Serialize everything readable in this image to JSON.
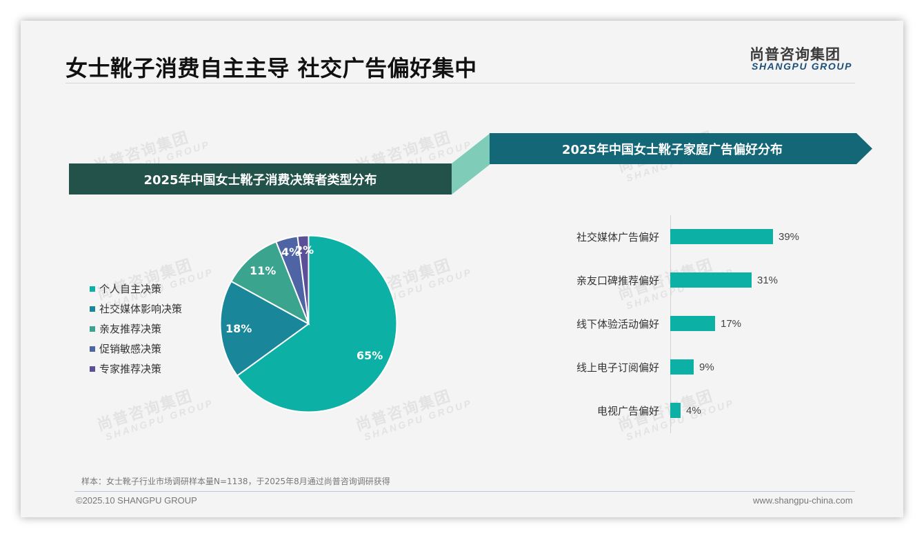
{
  "header": {
    "title": "女士靴子消费自主主导 社交广告偏好集中",
    "logo_cn": "尚普咨询集团",
    "logo_en": "SHANGPU GROUP"
  },
  "watermark": {
    "cn": "尚普咨询集团",
    "en": "SHANGPU GROUP"
  },
  "left_panel": {
    "banner_title": "2025年中国女士靴子消费决策者类型分布"
  },
  "right_panel": {
    "banner_title": "2025年中国女士靴子家庭广告偏好分布"
  },
  "colors": {
    "left_banner": "#22524a",
    "right_banner": "#146776",
    "connector": "#7fcdb9",
    "bar": "#0db0a4"
  },
  "chart_data": [
    {
      "type": "pie",
      "title": "2025年中国女士靴子消费决策者类型分布",
      "categories": [
        "个人自主决策",
        "社交媒体影响决策",
        "亲友推荐决策",
        "促销敏感决策",
        "专家推荐决策"
      ],
      "values": [
        65,
        18,
        11,
        4,
        2
      ],
      "labels": [
        "65%",
        "18%",
        "11%",
        "4%",
        "2%"
      ],
      "colors": [
        "#0db0a4",
        "#1a8699",
        "#3aa48f",
        "#4f64a4",
        "#5b4f98"
      ],
      "legend_position": "left",
      "start_angle": "12 o'clock, clockwise"
    },
    {
      "type": "bar",
      "orientation": "horizontal",
      "title": "2025年中国女士靴子家庭广告偏好分布",
      "categories": [
        "社交媒体广告偏好",
        "亲友口碑推荐偏好",
        "线下体验活动偏好",
        "线上电子订阅偏好",
        "电视广告偏好"
      ],
      "values": [
        39,
        31,
        17,
        9,
        4
      ],
      "labels": [
        "39%",
        "31%",
        "17%",
        "9%",
        "4%"
      ],
      "xlabel": "",
      "ylabel": "",
      "grid": false
    }
  ],
  "footer": {
    "note": "样本：女士靴子行业市场调研样本量N=1138，于2025年8月通过尚普咨询调研获得",
    "copyright": "©2025.10 SHANGPU GROUP",
    "website": "www.shangpu-china.com"
  }
}
